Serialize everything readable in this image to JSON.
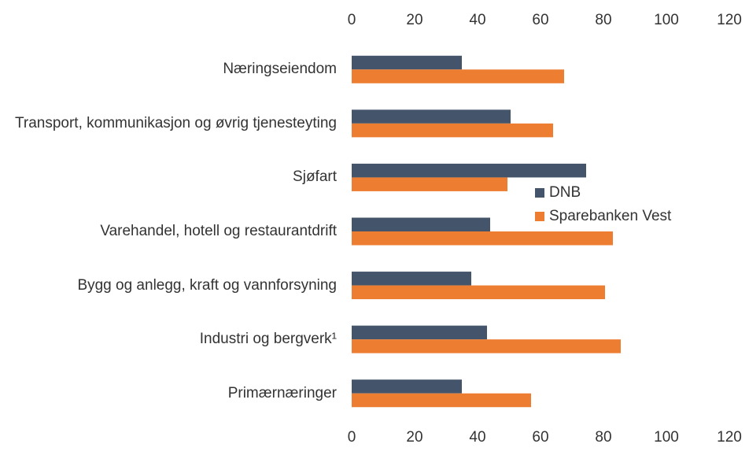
{
  "chart_data": {
    "type": "hbar",
    "categories": [
      "Næringseiendom",
      "Transport, kommunikasjon og øvrig tjenesteyting",
      "Sjøfart",
      "Varehandel, hotell og restaurantdrift",
      "Bygg og anlegg, kraft og vannforsyning",
      "Industri og bergverk¹",
      "Primærnæringer"
    ],
    "series": [
      {
        "name": "DNB",
        "color": "#44546a",
        "values": [
          35,
          50.5,
          74.5,
          44,
          38,
          43,
          35
        ]
      },
      {
        "name": "Sparebanken Vest",
        "color": "#ed7d31",
        "values": [
          67.5,
          64,
          49.5,
          83,
          80.5,
          85.5,
          57
        ]
      }
    ],
    "xlim": [
      0,
      120
    ],
    "xticks": [
      0,
      20,
      40,
      60,
      80,
      100,
      120
    ],
    "grid": false,
    "legend": "right"
  }
}
